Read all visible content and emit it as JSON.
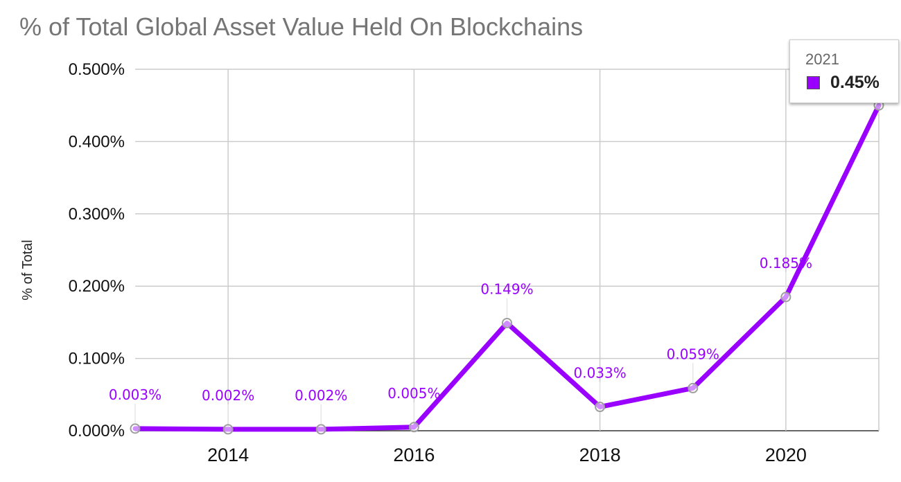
{
  "chart_data": {
    "type": "line",
    "title": "% of Total Global Asset Value Held On Blockchains",
    "ylabel": "% of Total",
    "xlabel": "",
    "x": [
      2013,
      2014,
      2015,
      2016,
      2017,
      2018,
      2019,
      2020,
      2021
    ],
    "series": [
      {
        "values": [
          0.003,
          0.002,
          0.002,
          0.005,
          0.149,
          0.033,
          0.059,
          0.185,
          0.45
        ],
        "color": "#9900ff"
      }
    ],
    "data_labels": [
      "0.003%",
      "0.002%",
      "0.002%",
      "0.005%",
      "0.149%",
      "0.033%",
      "0.059%",
      "0.185%",
      ""
    ],
    "x_ticks": [
      "2014",
      "2016",
      "2018",
      "2020"
    ],
    "x_tick_values": [
      2014,
      2016,
      2018,
      2020
    ],
    "y_ticks": [
      "0.000%",
      "0.100%",
      "0.200%",
      "0.300%",
      "0.400%",
      "0.500%"
    ],
    "y_tick_values": [
      0,
      0.1,
      0.2,
      0.3,
      0.4,
      0.5
    ],
    "xlim": [
      2013,
      2021
    ],
    "ylim": [
      0,
      0.5
    ],
    "grid": true,
    "tooltip": {
      "title": "2021",
      "value": "0.45%"
    }
  }
}
